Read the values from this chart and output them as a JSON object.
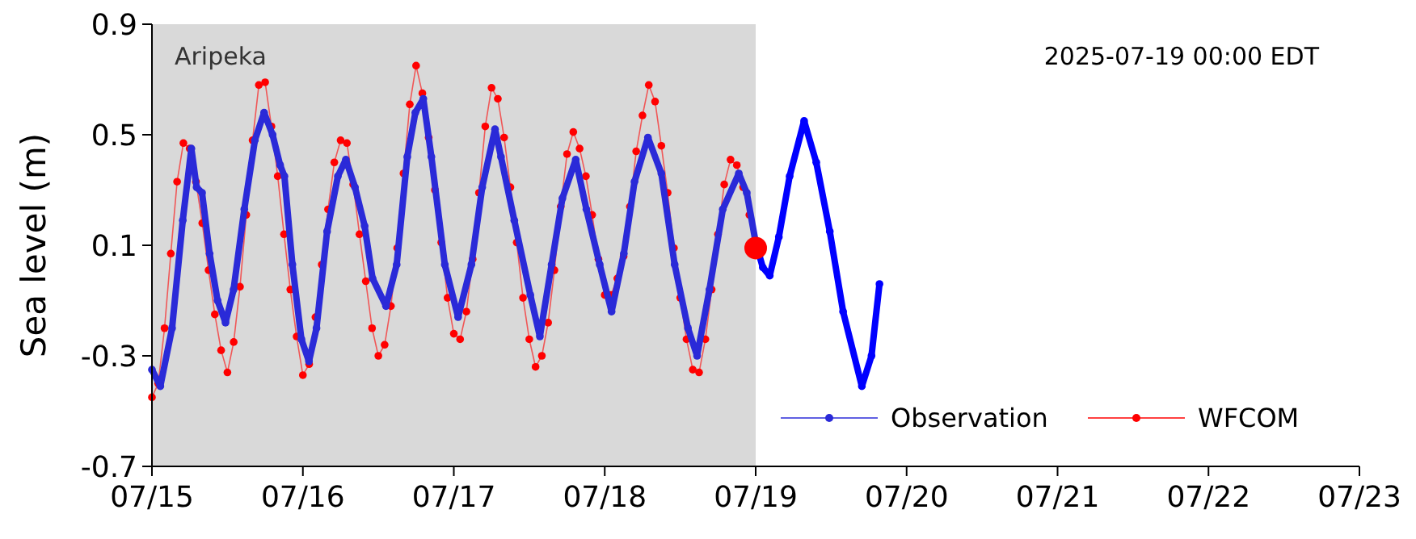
{
  "chart_data": {
    "type": "line",
    "ylabel": "Sea level (m)",
    "annotations": [
      "Aripeka",
      "2025-07-19 00:00 EDT"
    ],
    "xlim": [
      "2025-07-15",
      "2025-07-23"
    ],
    "xticks": [
      {
        "value": "2025-07-15",
        "label": "07/15"
      },
      {
        "value": "2025-07-16",
        "label": "07/16"
      },
      {
        "value": "2025-07-17",
        "label": "07/17"
      },
      {
        "value": "2025-07-18",
        "label": "07/18"
      },
      {
        "value": "2025-07-19",
        "label": "07/19"
      },
      {
        "value": "2025-07-20",
        "label": "07/20"
      },
      {
        "value": "2025-07-21",
        "label": "07/21"
      },
      {
        "value": "2025-07-22",
        "label": "07/22"
      },
      {
        "value": "2025-07-23",
        "label": "07/23"
      }
    ],
    "ylim": [
      -0.7,
      0.9
    ],
    "yticks": [
      -0.7,
      -0.3,
      0.1,
      0.5,
      0.9
    ],
    "bands": [
      {
        "axis": "x",
        "from": "2025-07-15",
        "to": "2025-07-19",
        "color": "#d9d9d9"
      }
    ],
    "legend": "bottom right",
    "marker": "circle",
    "grid": false,
    "series": [
      {
        "name": "WFCOM",
        "color": "#ff0000",
        "x": [
          "2025-07-15T00:00",
          "2025-07-15T01:00",
          "2025-07-15T02:00",
          "2025-07-15T03:00",
          "2025-07-15T04:00",
          "2025-07-15T05:00",
          "2025-07-15T06:00",
          "2025-07-15T07:00",
          "2025-07-15T08:00",
          "2025-07-15T09:00",
          "2025-07-15T10:00",
          "2025-07-15T11:00",
          "2025-07-15T12:00",
          "2025-07-15T13:00",
          "2025-07-15T14:00",
          "2025-07-15T15:00",
          "2025-07-15T16:00",
          "2025-07-15T17:00",
          "2025-07-15T18:00",
          "2025-07-15T19:00",
          "2025-07-15T20:00",
          "2025-07-15T21:00",
          "2025-07-15T22:00",
          "2025-07-15T23:00",
          "2025-07-16T00:00",
          "2025-07-16T01:00",
          "2025-07-16T02:00",
          "2025-07-16T03:00",
          "2025-07-16T04:00",
          "2025-07-16T05:00",
          "2025-07-16T06:00",
          "2025-07-16T07:00",
          "2025-07-16T08:00",
          "2025-07-16T09:00",
          "2025-07-16T10:00",
          "2025-07-16T11:00",
          "2025-07-16T12:00",
          "2025-07-16T13:00",
          "2025-07-16T14:00",
          "2025-07-16T15:00",
          "2025-07-16T16:00",
          "2025-07-16T17:00",
          "2025-07-16T18:00",
          "2025-07-16T19:00",
          "2025-07-16T20:00",
          "2025-07-16T21:00",
          "2025-07-16T22:00",
          "2025-07-16T23:00",
          "2025-07-17T00:00",
          "2025-07-17T01:00",
          "2025-07-17T02:00",
          "2025-07-17T03:00",
          "2025-07-17T04:00",
          "2025-07-17T05:00",
          "2025-07-17T06:00",
          "2025-07-17T07:00",
          "2025-07-17T08:00",
          "2025-07-17T09:00",
          "2025-07-17T10:00",
          "2025-07-17T11:00",
          "2025-07-17T12:00",
          "2025-07-17T13:00",
          "2025-07-17T14:00",
          "2025-07-17T15:00",
          "2025-07-17T16:00",
          "2025-07-17T17:00",
          "2025-07-17T18:00",
          "2025-07-17T19:00",
          "2025-07-17T20:00",
          "2025-07-17T21:00",
          "2025-07-17T22:00",
          "2025-07-17T23:00",
          "2025-07-18T00:00",
          "2025-07-18T01:00",
          "2025-07-18T02:00",
          "2025-07-18T03:00",
          "2025-07-18T04:00",
          "2025-07-18T05:00",
          "2025-07-18T06:00",
          "2025-07-18T07:00",
          "2025-07-18T08:00",
          "2025-07-18T09:00",
          "2025-07-18T10:00",
          "2025-07-18T11:00",
          "2025-07-18T12:00",
          "2025-07-18T13:00",
          "2025-07-18T14:00",
          "2025-07-18T15:00",
          "2025-07-18T16:00",
          "2025-07-18T17:00",
          "2025-07-18T18:00",
          "2025-07-18T19:00",
          "2025-07-18T20:00",
          "2025-07-18T21:00",
          "2025-07-18T22:00",
          "2025-07-18T23:00"
        ],
        "values": [
          -0.45,
          -0.4,
          -0.2,
          0.07,
          0.33,
          0.47,
          0.45,
          0.33,
          0.18,
          0.01,
          -0.15,
          -0.28,
          -0.36,
          -0.25,
          -0.05,
          0.21,
          0.48,
          0.68,
          0.69,
          0.53,
          0.35,
          0.14,
          -0.06,
          -0.23,
          -0.37,
          -0.33,
          -0.16,
          0.03,
          0.23,
          0.4,
          0.48,
          0.47,
          0.32,
          0.14,
          -0.03,
          -0.2,
          -0.3,
          -0.26,
          -0.12,
          0.09,
          0.36,
          0.61,
          0.75,
          0.65,
          0.49,
          0.3,
          0.11,
          -0.09,
          -0.22,
          -0.24,
          -0.14,
          0.05,
          0.29,
          0.53,
          0.67,
          0.63,
          0.49,
          0.31,
          0.11,
          -0.09,
          -0.24,
          -0.34,
          -0.3,
          -0.18,
          0.01,
          0.24,
          0.43,
          0.51,
          0.45,
          0.35,
          0.21,
          0.05,
          -0.08,
          -0.08,
          -0.02,
          0.06,
          0.24,
          0.44,
          0.57,
          0.68,
          0.62,
          0.46,
          0.29,
          0.09,
          -0.09,
          -0.24,
          -0.35,
          -0.36,
          -0.24,
          -0.06,
          0.14,
          0.32,
          0.41,
          0.39,
          0.31,
          0.21
        ]
      },
      {
        "name": "Observation",
        "color": "#2a2ad8",
        "x": [
          "2025-07-15T00:00",
          "2025-07-15T01:20",
          "2025-07-15T03:12",
          "2025-07-15T04:54",
          "2025-07-15T06:16",
          "2025-07-15T07:06",
          "2025-07-15T07:58",
          "2025-07-15T09:10",
          "2025-07-15T10:26",
          "2025-07-15T11:42",
          "2025-07-15T12:59",
          "2025-07-15T14:41",
          "2025-07-15T16:22",
          "2025-07-15T17:50",
          "2025-07-15T19:11",
          "2025-07-15T20:23",
          "2025-07-15T21:04",
          "2025-07-15T22:20",
          "2025-07-15T23:46",
          "2025-07-16T00:58",
          "2025-07-16T02:10",
          "2025-07-16T03:51",
          "2025-07-16T05:34",
          "2025-07-16T06:50",
          "2025-07-16T08:17",
          "2025-07-16T09:49",
          "2025-07-16T11:05",
          "2025-07-16T13:13",
          "2025-07-16T14:55",
          "2025-07-16T16:36",
          "2025-07-16T17:53",
          "2025-07-16T19:09",
          "2025-07-16T20:26",
          "2025-07-16T22:34",
          "2025-07-17T00:41",
          "2025-07-17T02:48",
          "2025-07-17T04:31",
          "2025-07-17T06:33",
          "2025-07-17T07:30",
          "2025-07-17T09:37",
          "2025-07-17T12:10",
          "2025-07-17T13:41",
          "2025-07-17T15:33",
          "2025-07-17T17:16",
          "2025-07-17T19:23",
          "2025-07-17T21:05",
          "2025-07-17T23:12",
          "2025-07-18T01:05",
          "2025-07-18T03:02",
          "2025-07-18T04:44",
          "2025-07-18T06:52",
          "2025-07-18T09:00",
          "2025-07-18T11:07",
          "2025-07-18T13:14",
          "2025-07-18T14:41",
          "2025-07-18T16:39",
          "2025-07-18T18:46",
          "2025-07-18T21:19",
          "2025-07-18T22:35",
          "2025-07-19T00:00"
        ],
        "values": [
          -0.35,
          -0.41,
          -0.2,
          0.19,
          0.45,
          0.31,
          0.29,
          0.07,
          -0.1,
          -0.18,
          -0.06,
          0.23,
          0.48,
          0.58,
          0.5,
          0.39,
          0.35,
          0.03,
          -0.24,
          -0.32,
          -0.2,
          0.15,
          0.35,
          0.41,
          0.31,
          0.17,
          -0.02,
          -0.12,
          0.03,
          0.42,
          0.58,
          0.63,
          0.42,
          0.03,
          -0.16,
          0.03,
          0.31,
          0.52,
          0.42,
          0.19,
          -0.08,
          -0.23,
          0.03,
          0.27,
          0.41,
          0.23,
          0.03,
          -0.14,
          0.07,
          0.33,
          0.49,
          0.36,
          0.03,
          -0.2,
          -0.3,
          -0.06,
          0.23,
          0.36,
          0.29,
          0.11
        ]
      },
      {
        "color": "#0000ff",
        "x": [
          "2025-07-19T00:00",
          "2025-07-19T01:08",
          "2025-07-19T02:14",
          "2025-07-19T03:41",
          "2025-07-19T05:24",
          "2025-07-19T07:42",
          "2025-07-19T09:38",
          "2025-07-19T11:47",
          "2025-07-19T13:54",
          "2025-07-19T16:53",
          "2025-07-19T18:25",
          "2025-07-19T19:41"
        ],
        "values": [
          0.11,
          0.02,
          -0.01,
          0.13,
          0.35,
          0.55,
          0.4,
          0.15,
          -0.14,
          -0.41,
          -0.3,
          -0.04
        ]
      },
      {
        "type": "scatter",
        "color": "#ff0000",
        "x": [
          "2025-07-19T00:00"
        ],
        "values": [
          0.09
        ]
      }
    ]
  }
}
